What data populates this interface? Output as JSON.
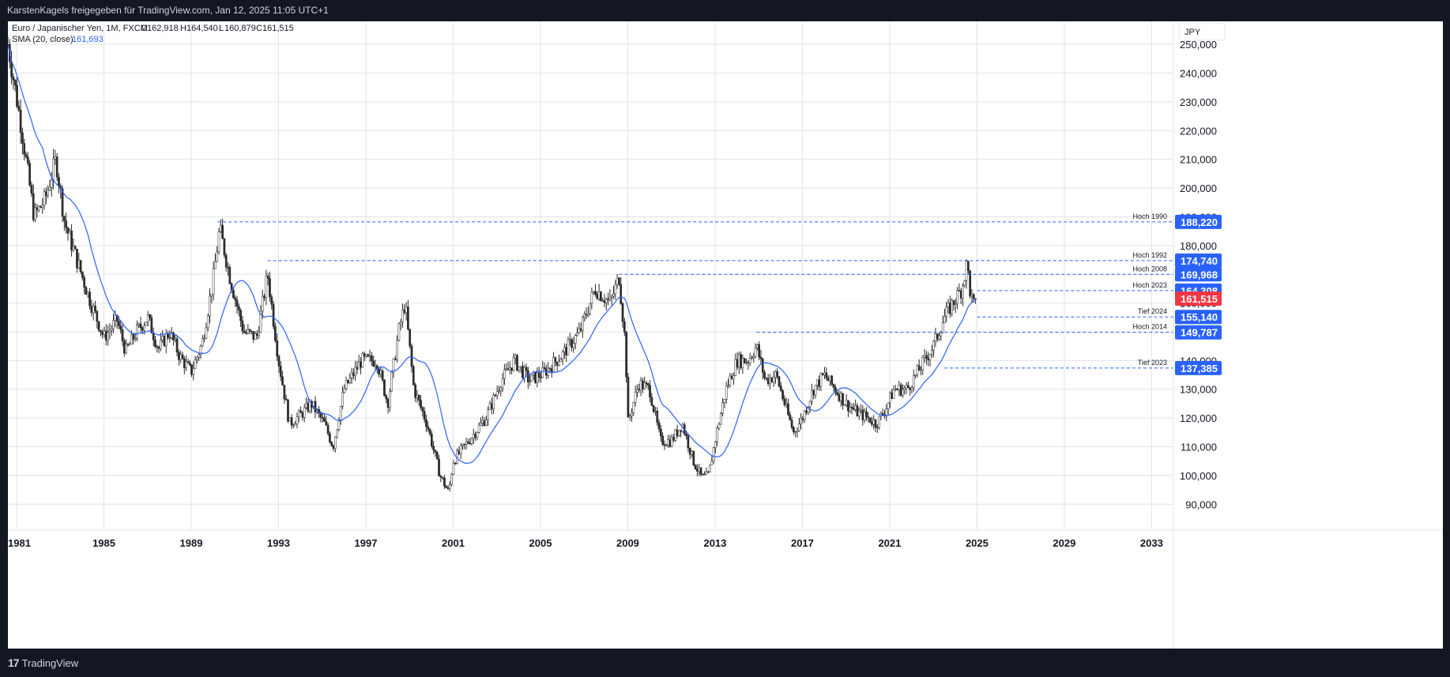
{
  "header": {
    "publish_text": "KarstenKagels freigegeben für TradingView.com, Jan 12, 2025 11:05 UTC+1"
  },
  "legend": {
    "symbol": "Euro / Japanischer Yen, 1M, FXCM",
    "open_label": "O",
    "open": "162,918",
    "high_label": "H",
    "high": "164,540",
    "low_label": "L",
    "low": "160,879",
    "close_label": "C",
    "close": "161,515",
    "indicator": "SMA (20, close)",
    "indicator_value": "161,693"
  },
  "currency_button": "JPY",
  "footer": {
    "brand": "TradingView",
    "logo": "17"
  },
  "colors": {
    "up": "#26a69a",
    "down": "#ef5350",
    "candle": "#2a2a2a",
    "sma": "#2962ff",
    "level": "#2962ff",
    "price": "#f23645",
    "axis_text": "#131722",
    "grid": "#e0e3eb"
  },
  "chart_data": {
    "type": "candlestick",
    "symbol": "EUR/JPY",
    "timeframe": "1M",
    "x_tick_labels": [
      "1981",
      "1985",
      "1989",
      "1993",
      "1997",
      "2001",
      "2005",
      "2009",
      "2013",
      "2017",
      "2021",
      "2025",
      "2029",
      "2033"
    ],
    "x_range": [
      1980.6,
      2034.0
    ],
    "y_tick_labels": [
      "250,000",
      "240,000",
      "230,000",
      "220,000",
      "210,000",
      "200,000",
      "190,000",
      "180,000",
      "170,000",
      "160,000",
      "150,000",
      "140,000",
      "130,000",
      "120,000",
      "110,000",
      "100,000",
      "90,000"
    ],
    "ylim": [
      81.0,
      258.0
    ],
    "close_path": [
      [
        1980.6,
        250
      ],
      [
        1981.2,
        222
      ],
      [
        1981.8,
        190
      ],
      [
        1982.3,
        196
      ],
      [
        1982.8,
        210
      ],
      [
        1983.2,
        188
      ],
      [
        1983.8,
        174
      ],
      [
        1984.4,
        160
      ],
      [
        1985.0,
        148
      ],
      [
        1985.6,
        154
      ],
      [
        1986.0,
        143
      ],
      [
        1986.5,
        150
      ],
      [
        1987.0,
        155
      ],
      [
        1987.5,
        144
      ],
      [
        1988.0,
        150
      ],
      [
        1988.5,
        141
      ],
      [
        1989.0,
        136
      ],
      [
        1989.5,
        146
      ],
      [
        1990.0,
        168
      ],
      [
        1990.3,
        186
      ],
      [
        1990.8,
        168
      ],
      [
        1991.4,
        150
      ],
      [
        1992.0,
        148
      ],
      [
        1992.5,
        170
      ],
      [
        1993.0,
        140
      ],
      [
        1993.5,
        118
      ],
      [
        1994.0,
        121
      ],
      [
        1994.5,
        125
      ],
      [
        1995.1,
        118
      ],
      [
        1995.5,
        110
      ],
      [
        1996.0,
        130
      ],
      [
        1996.8,
        140
      ],
      [
        1997.5,
        140
      ],
      [
        1998.0,
        125
      ],
      [
        1998.5,
        150
      ],
      [
        1998.8,
        160
      ],
      [
        1999.2,
        130
      ],
      [
        1999.8,
        118
      ],
      [
        2000.4,
        100
      ],
      [
        2000.8,
        94
      ],
      [
        2001.0,
        105
      ],
      [
        2001.5,
        110
      ],
      [
        2002.0,
        115
      ],
      [
        2002.5,
        120
      ],
      [
        2003.2,
        133
      ],
      [
        2003.8,
        140
      ],
      [
        2004.5,
        133
      ],
      [
        2005.2,
        136
      ],
      [
        2006.0,
        142
      ],
      [
        2006.8,
        150
      ],
      [
        2007.5,
        165
      ],
      [
        2008.2,
        160
      ],
      [
        2008.6,
        169
      ],
      [
        2008.9,
        145
      ],
      [
        2009.0,
        118
      ],
      [
        2009.5,
        132
      ],
      [
        2010.0,
        130
      ],
      [
        2010.5,
        112
      ],
      [
        2011.0,
        112
      ],
      [
        2011.5,
        118
      ],
      [
        2012.0,
        105
      ],
      [
        2012.4,
        99
      ],
      [
        2012.7,
        100
      ],
      [
        2013.0,
        112
      ],
      [
        2013.5,
        130
      ],
      [
        2014.0,
        140
      ],
      [
        2014.5,
        140
      ],
      [
        2014.9,
        145
      ],
      [
        2015.3,
        133
      ],
      [
        2015.8,
        135
      ],
      [
        2016.3,
        122
      ],
      [
        2016.6,
        115
      ],
      [
        2017.0,
        120
      ],
      [
        2017.5,
        130
      ],
      [
        2018.0,
        135
      ],
      [
        2018.5,
        130
      ],
      [
        2019.0,
        125
      ],
      [
        2019.5,
        122
      ],
      [
        2020.0,
        120
      ],
      [
        2020.4,
        118
      ],
      [
        2020.8,
        123
      ],
      [
        2021.2,
        130
      ],
      [
        2021.8,
        130
      ],
      [
        2022.2,
        135
      ],
      [
        2022.6,
        140
      ],
      [
        2023.0,
        145
      ],
      [
        2023.5,
        155
      ],
      [
        2023.9,
        160
      ],
      [
        2024.3,
        165
      ],
      [
        2024.55,
        174
      ],
      [
        2024.7,
        163
      ],
      [
        2024.9,
        158
      ],
      [
        2025.0,
        161.5
      ]
    ],
    "series": [
      {
        "name": "SMA (20, close)"
      }
    ],
    "levels": [
      {
        "label": "Hoch 1990",
        "value": "188,220",
        "from": 1990.2
      },
      {
        "label": "Hoch 1992",
        "value": "174,740",
        "from": 1992.5
      },
      {
        "label": "Hoch 2008",
        "value": "169,968",
        "from": 2008.6
      },
      {
        "label": "Hoch 2023",
        "value": "164,308",
        "from": 2025.0
      },
      {
        "label": "Tief 2024",
        "value": "155,140",
        "from": 2025.0
      },
      {
        "label": "Hoch 2014",
        "value": "149,787",
        "from": 2014.9
      },
      {
        "label": "Tief 2023",
        "value": "137,385",
        "from": 2023.5
      }
    ],
    "last_price": "161,515",
    "grid": true
  }
}
